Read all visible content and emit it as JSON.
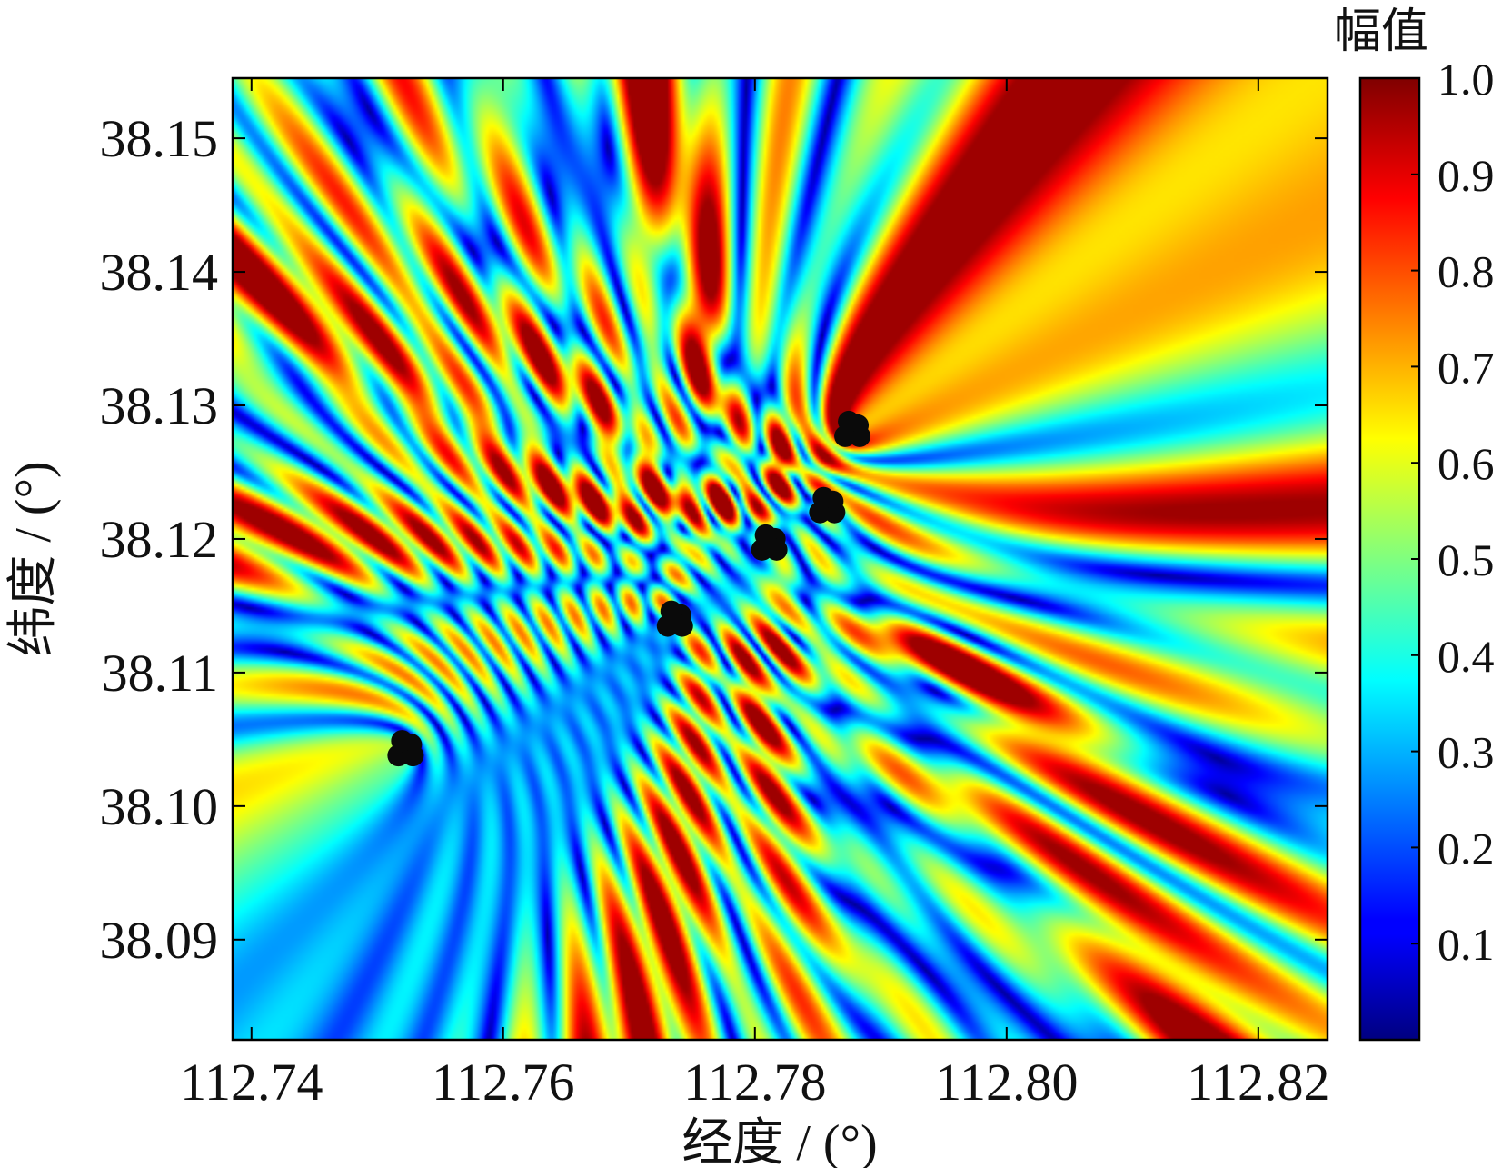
{
  "chart_data": {
    "type": "heatmap",
    "xlabel": "经度 / (°)",
    "ylabel": "纬度 / (°)",
    "xlim": [
      112.7385,
      112.8255
    ],
    "ylim": [
      38.0825,
      38.1545
    ],
    "x_ticks": [
      112.74,
      112.76,
      112.78,
      112.8,
      112.82
    ],
    "x_tick_labels": [
      "112.74",
      "112.76",
      "112.78",
      "112.80",
      "112.82"
    ],
    "y_ticks": [
      38.09,
      38.1,
      38.11,
      38.12,
      38.13,
      38.14,
      38.15
    ],
    "y_tick_labels": [
      "38.09",
      "38.10",
      "38.11",
      "38.12",
      "38.13",
      "38.14",
      "38.15"
    ],
    "colormap": "jet",
    "colorbar": {
      "title": "幅值",
      "range": [
        0,
        1.0
      ],
      "ticks": [
        0.1,
        0.2,
        0.3,
        0.4,
        0.5,
        0.6,
        0.7,
        0.8,
        0.9,
        1.0
      ],
      "tick_labels": [
        "0.1",
        "0.2",
        "0.3",
        "0.4",
        "0.5",
        "0.6",
        "0.7",
        "0.8",
        "0.9",
        "1.0"
      ]
    },
    "grid": false,
    "sources": [
      {
        "lon": 112.7521,
        "lat": 38.1042
      },
      {
        "lon": 112.7735,
        "lat": 38.1139
      },
      {
        "lon": 112.781,
        "lat": 38.1196
      },
      {
        "lon": 112.7856,
        "lat": 38.1224
      },
      {
        "lon": 112.7876,
        "lat": 38.1281
      }
    ]
  }
}
